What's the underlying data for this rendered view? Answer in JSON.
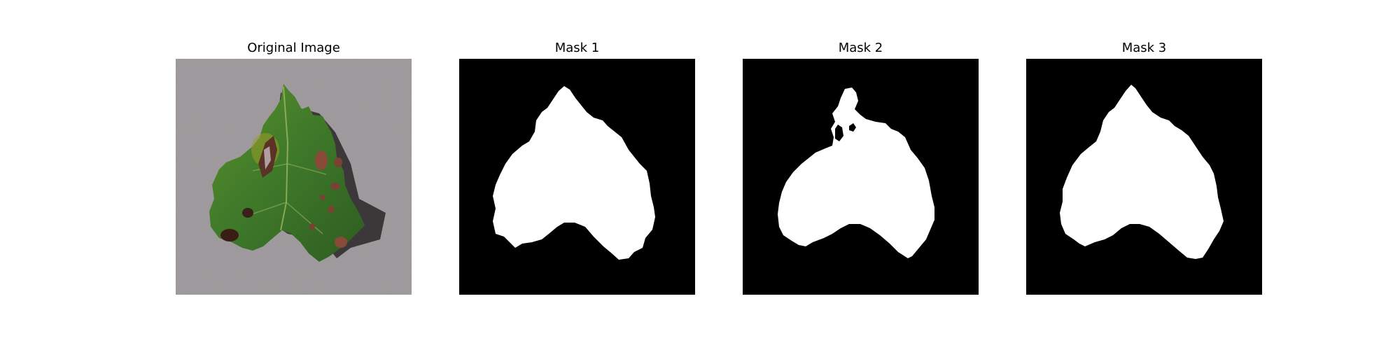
{
  "panels": [
    {
      "title": "Original Image"
    },
    {
      "title": "Mask 1"
    },
    {
      "title": "Mask 2"
    },
    {
      "title": "Mask 3"
    }
  ],
  "colors": {
    "background_gray": "#a5a0a3",
    "leaf_green": "#3f7a2a",
    "leaf_dark": "#2e5c20",
    "lesion_brown": "#6b3a2a",
    "mask_bg": "#000000",
    "mask_fg": "#ffffff"
  }
}
